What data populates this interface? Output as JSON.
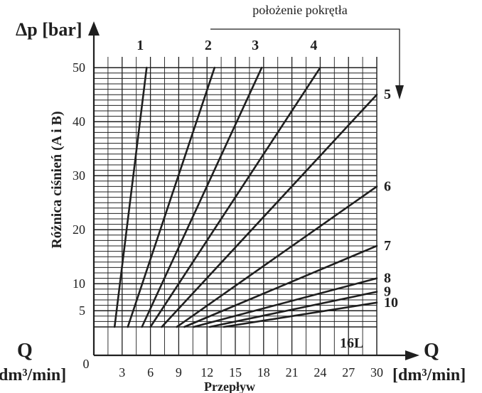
{
  "chart_data": {
    "type": "line",
    "title": "położenie pokrętła",
    "ylabel_symbol": "Δp [bar]",
    "ylabel": "Różnica ciśnień (A i B)",
    "xlabel": "Przepływ",
    "xlabel_symbol": "Q",
    "xunit": "[dm³/min]",
    "left_symbol": "Q",
    "left_unit": "dm³/min]",
    "x_ticks": [
      "0",
      "3",
      "6",
      "9",
      "12",
      "15",
      "18",
      "21",
      "24",
      "27",
      "30"
    ],
    "y_ticks": [
      "5",
      "10",
      "20",
      "30",
      "40",
      "50"
    ],
    "y_tick_values": [
      5,
      10,
      20,
      30,
      40,
      50
    ],
    "xlim": [
      0,
      30
    ],
    "y_scale": "linear, axis broken below approximately 2 bar",
    "annotation": "16L",
    "grid": true,
    "series": [
      {
        "name": "1",
        "x": [
          2.2,
          5.6
        ],
        "y": [
          0,
          50
        ]
      },
      {
        "name": "2",
        "x": [
          3.6,
          12.8
        ],
        "y": [
          0,
          50
        ]
      },
      {
        "name": "3",
        "x": [
          5.1,
          17.8
        ],
        "y": [
          0,
          50
        ]
      },
      {
        "name": "4",
        "x": [
          6.0,
          24.0
        ],
        "y": [
          0,
          50
        ]
      },
      {
        "name": "5",
        "x": [
          7.2,
          30.0
        ],
        "y": [
          0,
          45
        ]
      },
      {
        "name": "6",
        "x": [
          8.8,
          30.0
        ],
        "y": [
          0,
          28
        ]
      },
      {
        "name": "7",
        "x": [
          9.6,
          30.0
        ],
        "y": [
          0,
          17
        ]
      },
      {
        "name": "8",
        "x": [
          10.6,
          30.0
        ],
        "y": [
          0,
          11
        ]
      },
      {
        "name": "9",
        "x": [
          12.3,
          30.0
        ],
        "y": [
          0,
          8.5
        ]
      },
      {
        "name": "10",
        "x": [
          13.8,
          30.0
        ],
        "y": [
          0,
          6.5
        ]
      }
    ]
  }
}
